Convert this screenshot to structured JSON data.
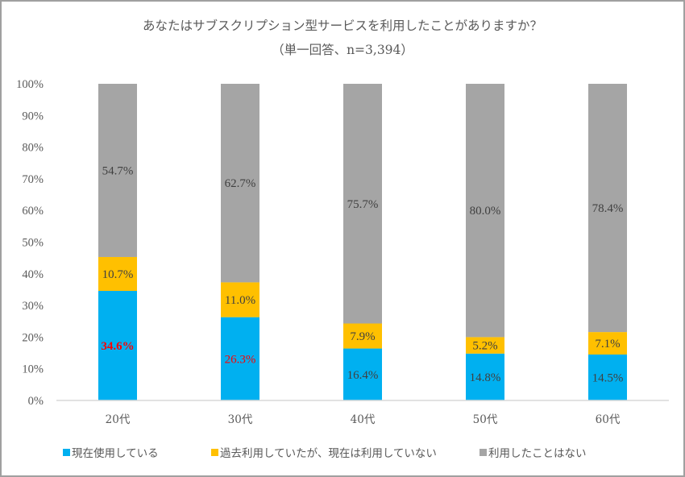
{
  "chart_data": {
    "type": "bar",
    "stacked": true,
    "orientation": "vertical",
    "title": "あなたはサブスクリプション型サービスを利用したことがありますか？",
    "subtitle": "（単一回答、n=3,394）",
    "xlabel": "",
    "ylabel": "",
    "ylim": [
      0,
      100
    ],
    "yticks": [
      "0%",
      "10%",
      "20%",
      "30%",
      "40%",
      "50%",
      "60%",
      "70%",
      "80%",
      "90%",
      "100%"
    ],
    "grid": false,
    "legend_position": "bottom",
    "categories": [
      "20代",
      "30代",
      "40代",
      "50代",
      "60代"
    ],
    "series": [
      {
        "name": "現在使用している",
        "color": "#00b0f0",
        "values": [
          34.6,
          26.3,
          16.4,
          14.8,
          14.5
        ],
        "labels": [
          "34.6%",
          "26.3%",
          "16.4%",
          "14.8%",
          "14.5%"
        ],
        "highlighted": [
          true,
          true,
          false,
          false,
          false
        ],
        "highlight_color": "#ff0000"
      },
      {
        "name": "過去利用していたが、現在は利用していない",
        "color": "#ffc000",
        "values": [
          10.7,
          11.0,
          7.9,
          5.2,
          7.1
        ],
        "labels": [
          "10.7%",
          "11.0%",
          "7.9%",
          "5.2%",
          "7.1%"
        ]
      },
      {
        "name": "利用したことはない",
        "color": "#a5a5a5",
        "values": [
          54.7,
          62.7,
          75.7,
          80.0,
          78.4
        ],
        "labels": [
          "54.7%",
          "62.7%",
          "75.7%",
          "80.0%",
          "78.4%"
        ]
      }
    ]
  }
}
